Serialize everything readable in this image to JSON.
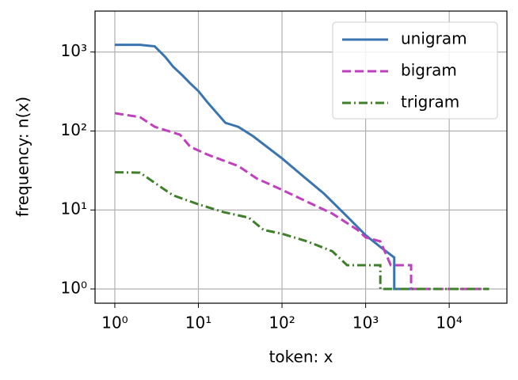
{
  "chart_data": {
    "type": "line",
    "xlabel": "token: x",
    "ylabel": "frequency: n(x)",
    "xscale": "log",
    "yscale": "log",
    "grid": true,
    "legend": "upper right",
    "xlim": [
      0.58,
      49000
    ],
    "ylim": [
      0.66,
      3300
    ],
    "xticks": [
      {
        "value": 1,
        "label": "10⁰"
      },
      {
        "value": 10,
        "label": "10¹"
      },
      {
        "value": 100,
        "label": "10²"
      },
      {
        "value": 1000,
        "label": "10³"
      },
      {
        "value": 10000,
        "label": "10⁴"
      }
    ],
    "yticks": [
      {
        "value": 1,
        "label": "10⁰"
      },
      {
        "value": 10,
        "label": "10¹"
      },
      {
        "value": 100,
        "label": "10²"
      },
      {
        "value": 1000,
        "label": "10³"
      }
    ],
    "series": [
      {
        "name": "unigram",
        "color": "#3a75b0",
        "linestyle": "solid",
        "x": [
          1,
          2,
          3,
          4,
          5,
          6.4,
          8,
          10,
          13,
          21,
          30,
          45,
          100,
          170,
          320,
          620,
          1000,
          1500,
          2200,
          2200,
          4500
        ],
        "values": [
          1235,
          1235,
          1180,
          870,
          650,
          510,
          400,
          320,
          227,
          127,
          113,
          86,
          45,
          28,
          16,
          8,
          4.8,
          3.4,
          2.5,
          1,
          1
        ]
      },
      {
        "name": "bigram",
        "color": "#bf3fbf",
        "linestyle": "dashed",
        "x": [
          1,
          2,
          3,
          6,
          8,
          13,
          30,
          50,
          100,
          200,
          400,
          800,
          1000,
          1500,
          2000,
          3500,
          3500,
          30000
        ],
        "values": [
          168,
          150,
          113,
          90,
          63,
          50,
          36,
          25,
          18,
          12.7,
          9,
          5.6,
          4.5,
          4,
          2,
          2,
          1,
          1
        ]
      },
      {
        "name": "trigram",
        "color": "#3f7f2a",
        "linestyle": "dashdot",
        "x": [
          1,
          2,
          4,
          5,
          10,
          20,
          40,
          60,
          100,
          200,
          400,
          600,
          1500,
          1500,
          30000
        ],
        "values": [
          30,
          29.7,
          17.9,
          15.3,
          11.8,
          9.4,
          8,
          5.6,
          5,
          4,
          3,
          2,
          2,
          1,
          1
        ]
      }
    ]
  }
}
